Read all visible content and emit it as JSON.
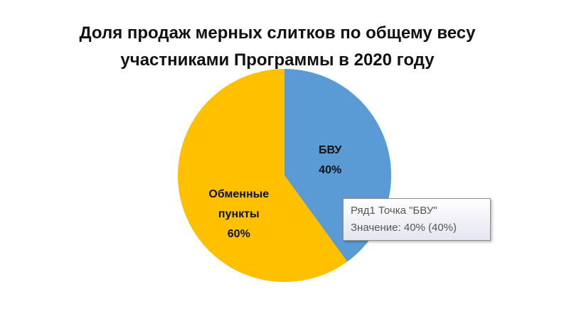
{
  "chart_data": {
    "type": "pie",
    "title": "Доля продаж мерных слитков по общему весу участниками Программы в 2020 году",
    "categories": [
      "БВУ",
      "Обменные пункты"
    ],
    "values": [
      40,
      60
    ],
    "value_labels": [
      "40%",
      "60%"
    ],
    "colors": [
      "#5b9bd5",
      "#ffc000"
    ]
  },
  "tooltip": {
    "point_line": "Ряд1 Точка \"БВУ\"",
    "value_line": "Значение: 40% (40%)"
  }
}
